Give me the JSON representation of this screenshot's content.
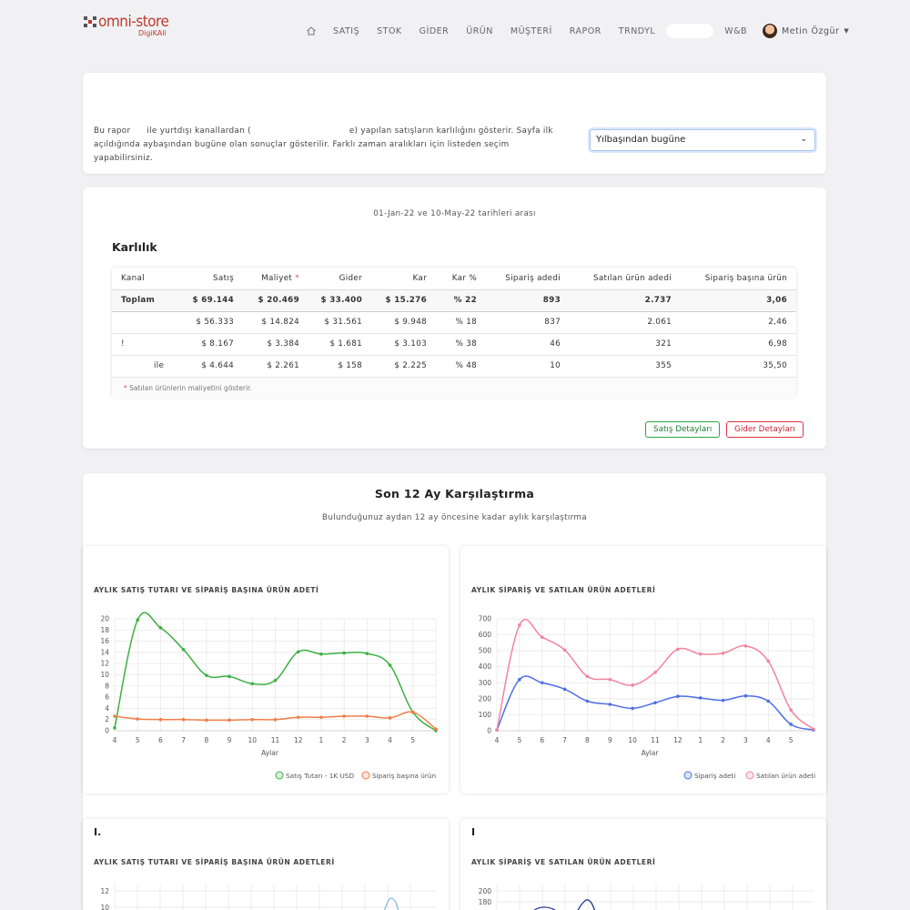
{
  "brand": {
    "name": "omni-store",
    "sub": "DigiKAli"
  },
  "nav": {
    "items": [
      "SATIŞ",
      "STOK",
      "GİDER",
      "ÜRÜN",
      "MÜŞTERİ",
      "RAPOR",
      "TRNDYL",
      "W&B"
    ],
    "user": "Metin Özgür"
  },
  "intro": {
    "line1a": "Bu rapor",
    "line1b": "ile yurtdışı kanallardan (",
    "line1c": "e) yapılan satışların karlılığını gösterir. Sayfa ilk",
    "line2": "açıldığında aybaşından bugüne olan sonuçlar gösterilir. Farklı zaman aralıkları için listeden seçim yapabilirsiniz.",
    "select_value": "Yılbaşından bugüne"
  },
  "profit": {
    "daterange": "01-Jan-22 ve 10-May-22 tarihleri arası",
    "title": "Karlılık",
    "headers": [
      "Kanal",
      "Satış",
      "Maliyet",
      "Gider",
      "Kar",
      "Kar %",
      "Sipariş adedi",
      "Satılan ürün adedi",
      "Sipariş başına ürün"
    ],
    "required_mark": "*",
    "total": [
      "Toplam",
      "$ 69.144",
      "$ 20.469",
      "$ 33.400",
      "$ 15.276",
      "% 22",
      "893",
      "2.737",
      "3,06"
    ],
    "rows": [
      [
        "",
        "$ 56.333",
        "$ 14.824",
        "$ 31.561",
        "$ 9.948",
        "% 18",
        "837",
        "2.061",
        "2,46"
      ],
      [
        "!",
        "$ 8.167",
        "$ 3.384",
        "$ 1.681",
        "$ 3.103",
        "% 38",
        "46",
        "321",
        "6,98"
      ],
      [
        "ile",
        "$ 4.644",
        "$ 2.261",
        "$ 158",
        "$ 2.225",
        "% 48",
        "10",
        "355",
        "35,50"
      ]
    ],
    "note": "Satılan ürünlerin maliyetini gösterir.",
    "btn_sales": "Satış Detayları",
    "btn_expense": "Gider Detayları"
  },
  "compare": {
    "title": "Son 12 Ay Karşılaştırma",
    "subtitle": "Bulunduğunuz aydan 12 ay öncesine kadar aylık karşılaştırma",
    "chart1_title": "AYLIK SATIŞ TUTARI VE SİPARİŞ BAŞINA ÜRÜN ADETİ",
    "chart2_title": "AYLIK SİPARİŞ VE SATILAN ÜRÜN ADETLERİ",
    "chart3_heading": "I.",
    "chart3_title": "AYLIK SATIŞ TUTARI VE SİPARİŞ BAŞINA ÜRÜN ADETLERİ",
    "chart4_heading": "I",
    "chart4_title": "AYLIK SİPARİŞ VE SATILAN ÜRÜN ADETLERİ",
    "colors": {
      "green": "#3cb043",
      "orange": "#f07f4a",
      "blue": "#4f6ee6",
      "pink": "#f2849e"
    }
  },
  "chart_data": [
    {
      "type": "line",
      "title": "AYLIK SATIŞ TUTARI VE SİPARİŞ BAŞINA ÜRÜN ADETİ",
      "xlabel": "Aylar",
      "categories": [
        "4",
        "5",
        "6",
        "7",
        "8",
        "9",
        "10",
        "11",
        "12",
        "1",
        "2",
        "3",
        "4",
        "5",
        ""
      ],
      "ylim": [
        0,
        20
      ],
      "yticks": [
        0,
        2,
        4,
        6,
        8,
        10,
        12,
        14,
        16,
        18,
        20
      ],
      "series": [
        {
          "name": "Satış Tutarı - 1K USD",
          "values": [
            0.5,
            19.8,
            18.4,
            14.5,
            9.9,
            9.7,
            8.4,
            9.0,
            14.1,
            13.7,
            13.9,
            13.8,
            11.7,
            3.3,
            0
          ]
        },
        {
          "name": "Sipariş başına ürün",
          "values": [
            2.6,
            2.1,
            2.0,
            2.0,
            1.9,
            1.9,
            2.0,
            2.0,
            2.4,
            2.4,
            2.6,
            2.6,
            2.3,
            3.3,
            0.3
          ]
        }
      ],
      "legend": "bottom-right"
    },
    {
      "type": "line",
      "title": "AYLIK SİPARİŞ VE SATILAN ÜRÜN ADETLERİ",
      "xlabel": "Aylar",
      "categories": [
        "4",
        "5",
        "6",
        "7",
        "8",
        "9",
        "10",
        "11",
        "12",
        "1",
        "2",
        "3",
        "4",
        "5",
        ""
      ],
      "ylim": [
        0,
        700
      ],
      "yticks": [
        0,
        100,
        200,
        300,
        400,
        500,
        600,
        700
      ],
      "series": [
        {
          "name": "Sipariş adeti",
          "values": [
            5,
            320,
            300,
            260,
            185,
            165,
            140,
            175,
            215,
            205,
            190,
            218,
            185,
            40,
            5
          ]
        },
        {
          "name": "Satılan ürün adeti",
          "values": [
            5,
            660,
            585,
            505,
            340,
            320,
            285,
            365,
            510,
            480,
            485,
            530,
            435,
            130,
            10
          ]
        }
      ],
      "legend": "bottom-right"
    }
  ]
}
